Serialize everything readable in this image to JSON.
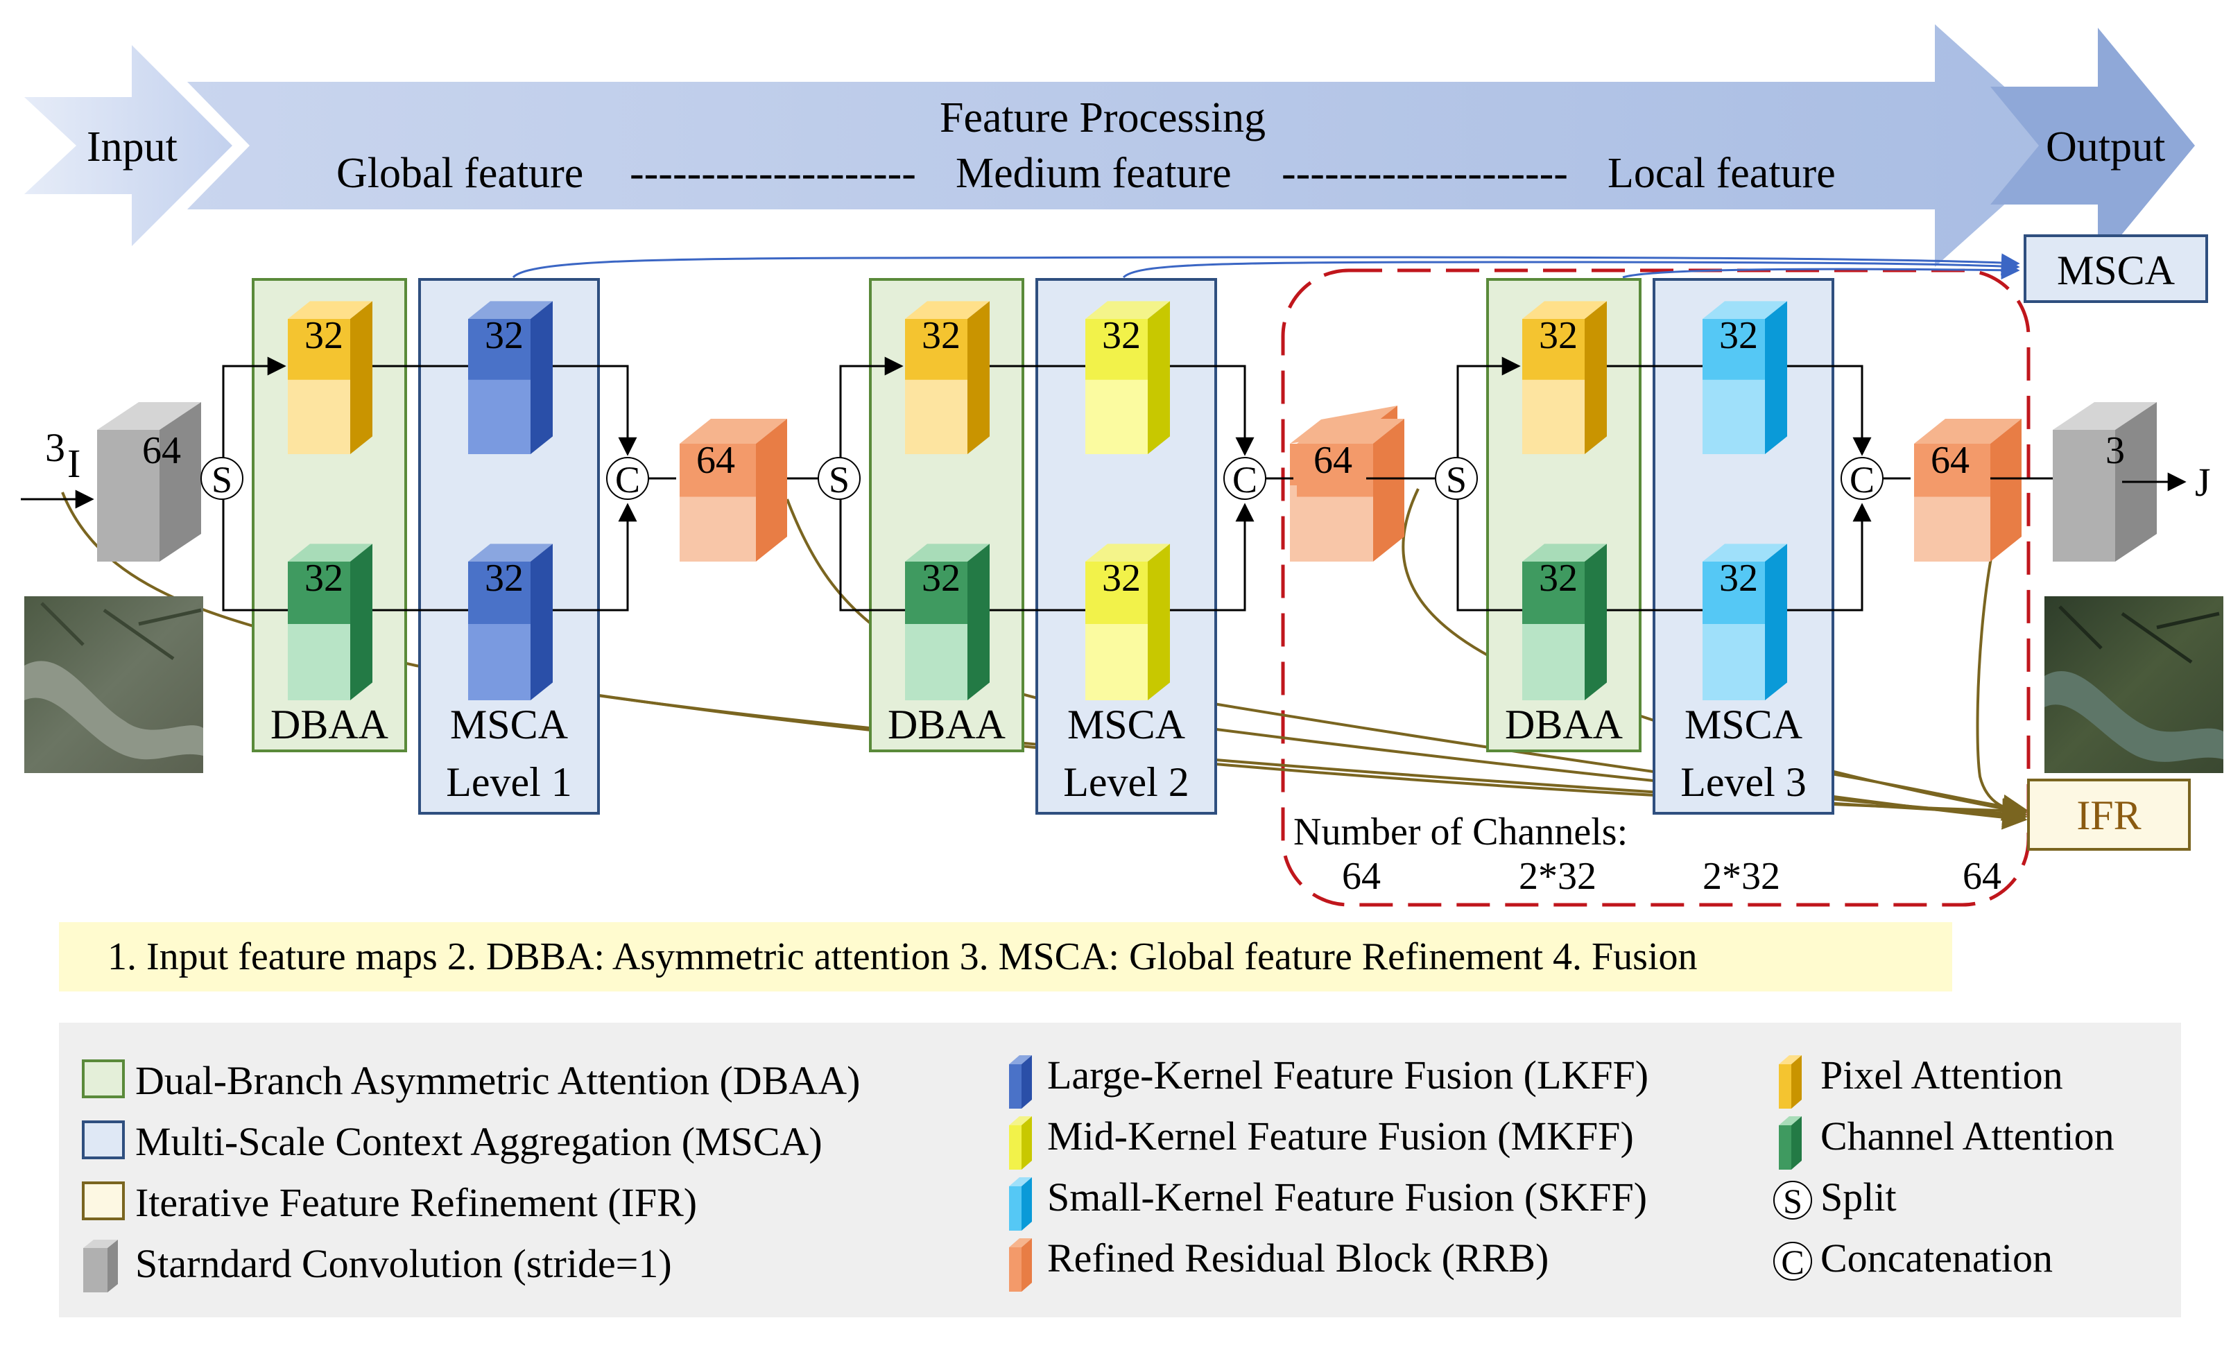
{
  "banner": {
    "input": "Input",
    "title": "Feature Processing",
    "global": "Global feature",
    "dash1": "--------------------",
    "medium": "Medium feature",
    "dash2": "--------------------",
    "local": "Local feature",
    "output": "Output"
  },
  "io": {
    "in_channels": "3",
    "in_label": "I",
    "conv_in_channels": "64",
    "conv_out_channels": "3",
    "out_label": "J"
  },
  "blocks": [
    {
      "dbaa_label": "DBAA",
      "msca_label": "MSCA",
      "msca_level": "Level 1",
      "pa": "32",
      "ca": "32",
      "kff_top": "32",
      "kff_bottom": "32",
      "rrb": "64",
      "split": "S",
      "concat": "C"
    },
    {
      "dbaa_label": "DBAA",
      "msca_label": "MSCA",
      "msca_level": "Level 2",
      "pa": "32",
      "ca": "32",
      "kff_top": "32",
      "kff_bottom": "32",
      "rrb": "64",
      "split": "S",
      "concat": "C"
    },
    {
      "dbaa_label": "DBAA",
      "msca_label": "MSCA",
      "msca_level": "Level 3",
      "pa": "32",
      "ca": "32",
      "kff_top": "32",
      "kff_bottom": "32",
      "rrb": "64",
      "split": "S",
      "concat": "C"
    }
  ],
  "pre_rrb": "64",
  "side": {
    "msca": "MSCA",
    "ifr": "IFR"
  },
  "channels": {
    "title": "Number of Channels:",
    "values": [
      "64",
      "2*32",
      "2*32",
      "64"
    ]
  },
  "steps": "1. Input feature maps 2. DBBA: Asymmetric attention 3. MSCA: Global feature Refinement 4.  Fusion",
  "legend": {
    "col1": [
      "Dual-Branch Asymmetric Attention (DBAA)",
      "Multi-Scale Context Aggregation (MSCA)",
      "Iterative Feature Refinement (IFR)",
      "Starndard Convolution (stride=1)"
    ],
    "col2": [
      "Large-Kernel Feature Fusion (LKFF)",
      "Mid-Kernel Feature Fusion (MKFF)",
      "Small-Kernel Feature Fusion (SKFF)",
      "Refined Residual Block (RRB)"
    ],
    "col3": [
      "Pixel Attention",
      "Channel Attention",
      "Split",
      "Concatenation"
    ],
    "symbols": {
      "split": "S",
      "concat": "C"
    }
  },
  "colors": {
    "banner": "#b8c7e6",
    "output_arrow": "#8fa8d8",
    "dbaa_fill": "#e4efd9",
    "dbaa_stroke": "#5a8a3a",
    "msca_fill": "#dfe8f5",
    "msca_stroke": "#2f4f7f",
    "ifr_fill": "#fdf8e3",
    "ifr_stroke": "#7a6520",
    "red_dash": "#c0161c",
    "steps_bg": "#fffbcf",
    "legend_bg": "#efefef"
  }
}
